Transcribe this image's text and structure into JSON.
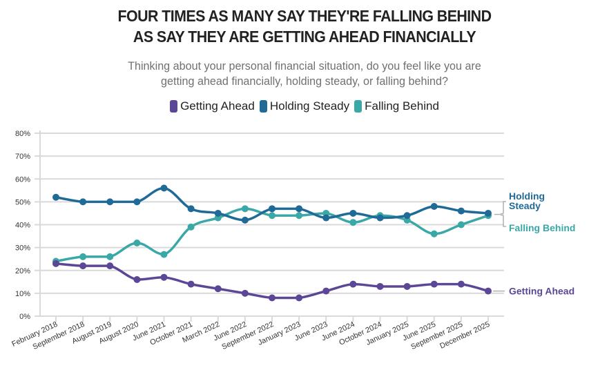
{
  "title_lines": [
    "FOUR TIMES AS MANY SAY THEY'RE FALLING BEHIND",
    "AS SAY THEY ARE GETTING AHEAD FINANCIALLY"
  ],
  "subtitle_lines": [
    "Thinking about your personal financial situation, do you feel like you are",
    "getting ahead financially, holding steady, or falling behind?"
  ],
  "legend": [
    {
      "label": "Getting Ahead",
      "color": "#5b4796"
    },
    {
      "label": "Holding Steady",
      "color": "#1f6a96"
    },
    {
      "label": "Falling Behind",
      "color": "#3aa8a6"
    }
  ],
  "chart_data": {
    "type": "line",
    "title": "FOUR TIMES AS MANY SAY THEY'RE FALLING BEHIND AS SAY THEY ARE GETTING AHEAD FINANCIALLY",
    "subtitle": "Thinking about your personal financial situation, do you feel like you are getting ahead financially, holding steady, or falling behind?",
    "xlabel": "",
    "ylabel": "",
    "ylim": [
      0,
      80
    ],
    "yticks": [
      0,
      10,
      20,
      30,
      40,
      50,
      60,
      70,
      80
    ],
    "ytick_labels": [
      "0%",
      "10%",
      "20%",
      "30%",
      "40%",
      "50%",
      "60%",
      "70%",
      "80%"
    ],
    "grid": true,
    "legend_position": "top",
    "categories": [
      "February 2018",
      "September 2018",
      "August 2019",
      "August 2020",
      "June 2021",
      "October 2021",
      "March 2022",
      "June 2022",
      "September 2022",
      "January 2023",
      "June 2023",
      "June 2024",
      "October 2024",
      "January 2025",
      "June 2025",
      "September 2025",
      "December 2025"
    ],
    "series": [
      {
        "name": "Getting Ahead",
        "color": "#5b4796",
        "values": [
          23,
          22,
          22,
          16,
          17,
          14,
          12,
          10,
          8,
          8,
          11,
          14,
          13,
          13,
          14,
          14,
          11
        ]
      },
      {
        "name": "Holding Steady",
        "color": "#1f6a96",
        "values": [
          52,
          50,
          50,
          50,
          56,
          47,
          45,
          42,
          47,
          47,
          43,
          45,
          43,
          44,
          48,
          46,
          45
        ]
      },
      {
        "name": "Falling Behind",
        "color": "#3aa8a6",
        "values": [
          24,
          26,
          26,
          32,
          27,
          39,
          43,
          47,
          44,
          44,
          45,
          41,
          44,
          42,
          36,
          40,
          44
        ]
      }
    ],
    "annotations": [
      {
        "text_lines": [
          "Holding",
          "Steady"
        ],
        "series": "Holding Steady"
      },
      {
        "text_lines": [
          "Falling Behind"
        ],
        "series": "Falling Behind"
      },
      {
        "text_lines": [
          "Getting Ahead"
        ],
        "series": "Getting Ahead"
      }
    ]
  }
}
